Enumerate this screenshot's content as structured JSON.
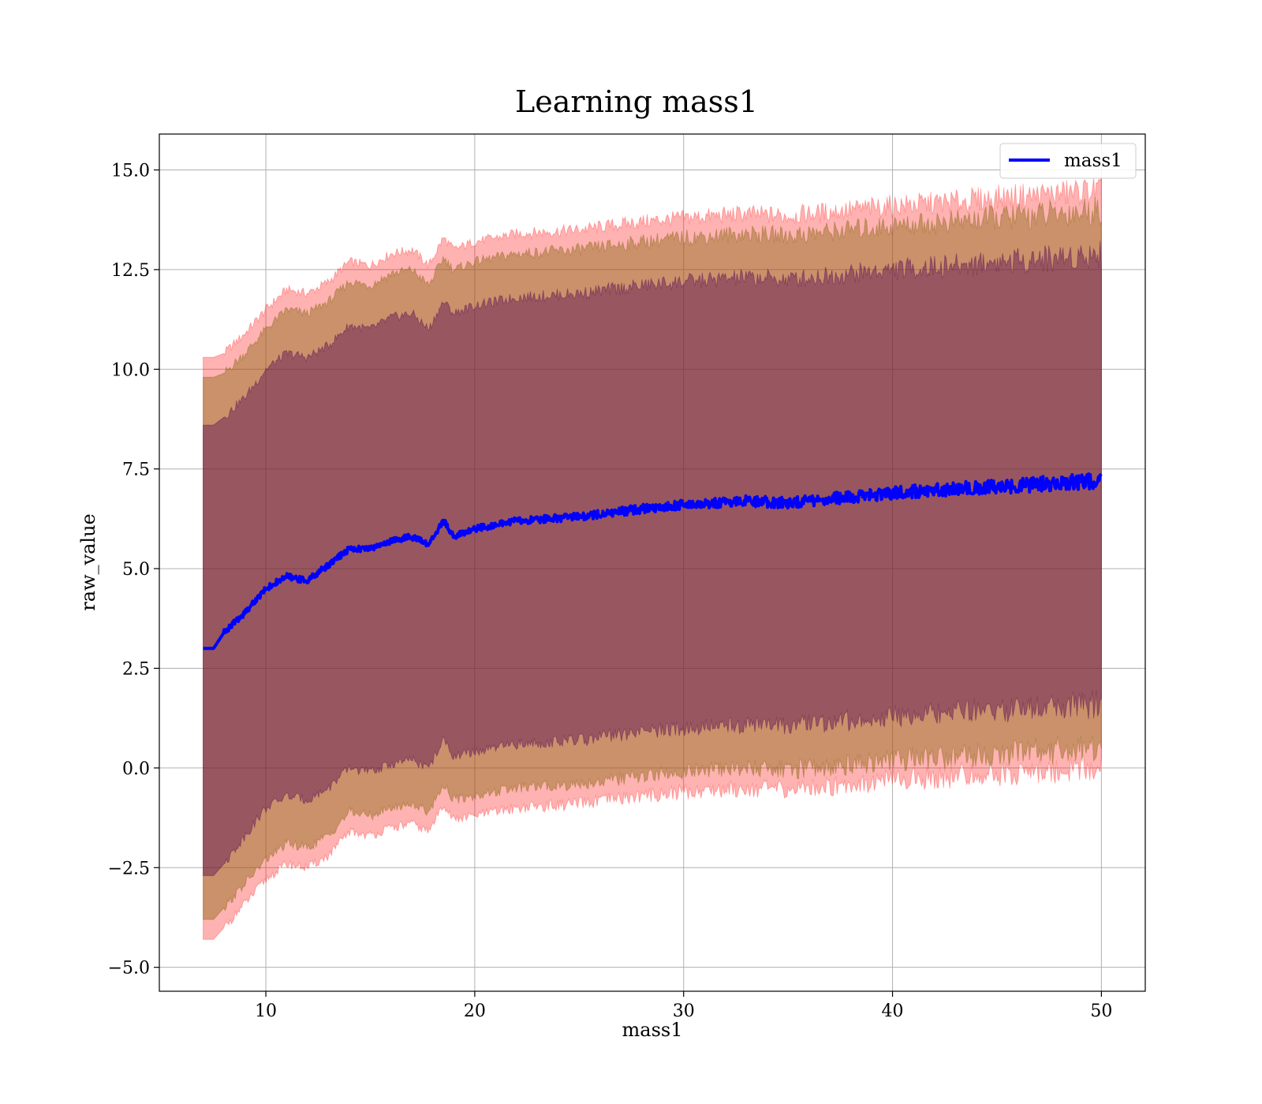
{
  "chart_data": {
    "type": "line",
    "title": "Learning mass1",
    "xlabel": "mass1",
    "ylabel": "raw_value",
    "xlim": [
      4.9,
      52.1
    ],
    "ylim": [
      -5.6,
      15.9
    ],
    "xticks": [
      10,
      20,
      30,
      40,
      50
    ],
    "yticks": [
      -5.0,
      -2.5,
      0.0,
      2.5,
      5.0,
      7.5,
      10.0,
      12.5,
      15.0
    ],
    "xtick_labels": [
      "10",
      "20",
      "30",
      "40",
      "50"
    ],
    "ytick_labels": [
      "−5.0",
      "−2.5",
      "0.0",
      "2.5",
      "5.0",
      "7.5",
      "10.0",
      "12.5",
      "15.0"
    ],
    "grid": true,
    "legend": {
      "position": "top-right",
      "entries": [
        "mass1"
      ]
    },
    "colors": {
      "line": "#0000ff",
      "outer_band": "#ff0000",
      "middle_band": "#8b6914",
      "inner_band": "#4b0050"
    },
    "series": [
      {
        "name": "mass1",
        "x": [
          7,
          7.5,
          8,
          9,
          10,
          11,
          12,
          13,
          14,
          15,
          16,
          17,
          17.8,
          18.5,
          19,
          20,
          22,
          25,
          28,
          30,
          33,
          35,
          38,
          40,
          43,
          45,
          48,
          50
        ],
        "y": [
          3.0,
          3.0,
          3.4,
          3.9,
          4.5,
          4.8,
          4.7,
          5.1,
          5.5,
          5.5,
          5.7,
          5.8,
          5.6,
          6.2,
          5.8,
          6.0,
          6.2,
          6.3,
          6.5,
          6.6,
          6.7,
          6.65,
          6.8,
          6.9,
          7.0,
          7.05,
          7.15,
          7.2
        ]
      }
    ],
    "bands": [
      {
        "level": "outer",
        "x": [
          7,
          7.5,
          8,
          9,
          10,
          11,
          12,
          13,
          14,
          15,
          16,
          17,
          17.8,
          18.5,
          19,
          20,
          22,
          25,
          28,
          30,
          33,
          35,
          38,
          40,
          43,
          45,
          48,
          50
        ],
        "upper": [
          10.3,
          10.3,
          10.4,
          10.9,
          11.5,
          12.0,
          11.9,
          12.2,
          12.7,
          12.6,
          12.9,
          13.0,
          12.6,
          13.3,
          13.0,
          13.2,
          13.4,
          13.5,
          13.7,
          13.8,
          13.9,
          13.85,
          14.0,
          14.1,
          14.2,
          14.3,
          14.4,
          14.5
        ],
        "lower": [
          -4.3,
          -4.3,
          -4.0,
          -3.4,
          -2.8,
          -2.4,
          -2.5,
          -2.2,
          -1.6,
          -1.7,
          -1.5,
          -1.4,
          -1.6,
          -0.9,
          -1.3,
          -1.2,
          -1.0,
          -0.9,
          -0.7,
          -0.6,
          -0.5,
          -0.55,
          -0.4,
          -0.3,
          -0.2,
          -0.15,
          -0.05,
          0.0
        ]
      },
      {
        "level": "middle",
        "x": [
          7,
          7.5,
          8,
          9,
          10,
          11,
          12,
          13,
          14,
          15,
          16,
          17,
          17.8,
          18.5,
          19,
          20,
          22,
          25,
          28,
          30,
          33,
          35,
          38,
          40,
          43,
          45,
          48,
          50
        ],
        "upper": [
          9.8,
          9.8,
          9.9,
          10.4,
          11.0,
          11.5,
          11.4,
          11.7,
          12.2,
          12.1,
          12.4,
          12.5,
          12.1,
          12.8,
          12.5,
          12.7,
          12.9,
          13.0,
          13.2,
          13.3,
          13.4,
          13.35,
          13.5,
          13.6,
          13.7,
          13.8,
          13.9,
          14.0
        ],
        "lower": [
          -3.8,
          -3.8,
          -3.5,
          -2.9,
          -2.3,
          -1.9,
          -2.0,
          -1.7,
          -1.1,
          -1.2,
          -1.0,
          -0.9,
          -1.1,
          -0.4,
          -0.8,
          -0.7,
          -0.5,
          -0.4,
          -0.2,
          -0.1,
          0.0,
          -0.05,
          0.1,
          0.2,
          0.3,
          0.35,
          0.45,
          0.5
        ]
      },
      {
        "level": "inner",
        "x": [
          7,
          7.5,
          8,
          9,
          10,
          11,
          12,
          13,
          14,
          15,
          16,
          17,
          17.8,
          18.5,
          19,
          20,
          22,
          25,
          28,
          30,
          33,
          35,
          38,
          40,
          43,
          45,
          48,
          50
        ],
        "upper": [
          8.6,
          8.6,
          8.8,
          9.3,
          10.0,
          10.4,
          10.3,
          10.6,
          11.1,
          11.0,
          11.3,
          11.4,
          11.0,
          11.7,
          11.4,
          11.6,
          11.8,
          11.9,
          12.1,
          12.2,
          12.3,
          12.25,
          12.4,
          12.5,
          12.6,
          12.7,
          12.8,
          12.9
        ],
        "lower": [
          -2.7,
          -2.7,
          -2.4,
          -1.7,
          -1.0,
          -0.7,
          -0.8,
          -0.5,
          0.0,
          -0.1,
          0.1,
          0.2,
          0.0,
          0.7,
          0.3,
          0.4,
          0.6,
          0.7,
          0.9,
          1.0,
          1.1,
          1.05,
          1.2,
          1.3,
          1.4,
          1.45,
          1.55,
          1.6
        ]
      }
    ]
  }
}
